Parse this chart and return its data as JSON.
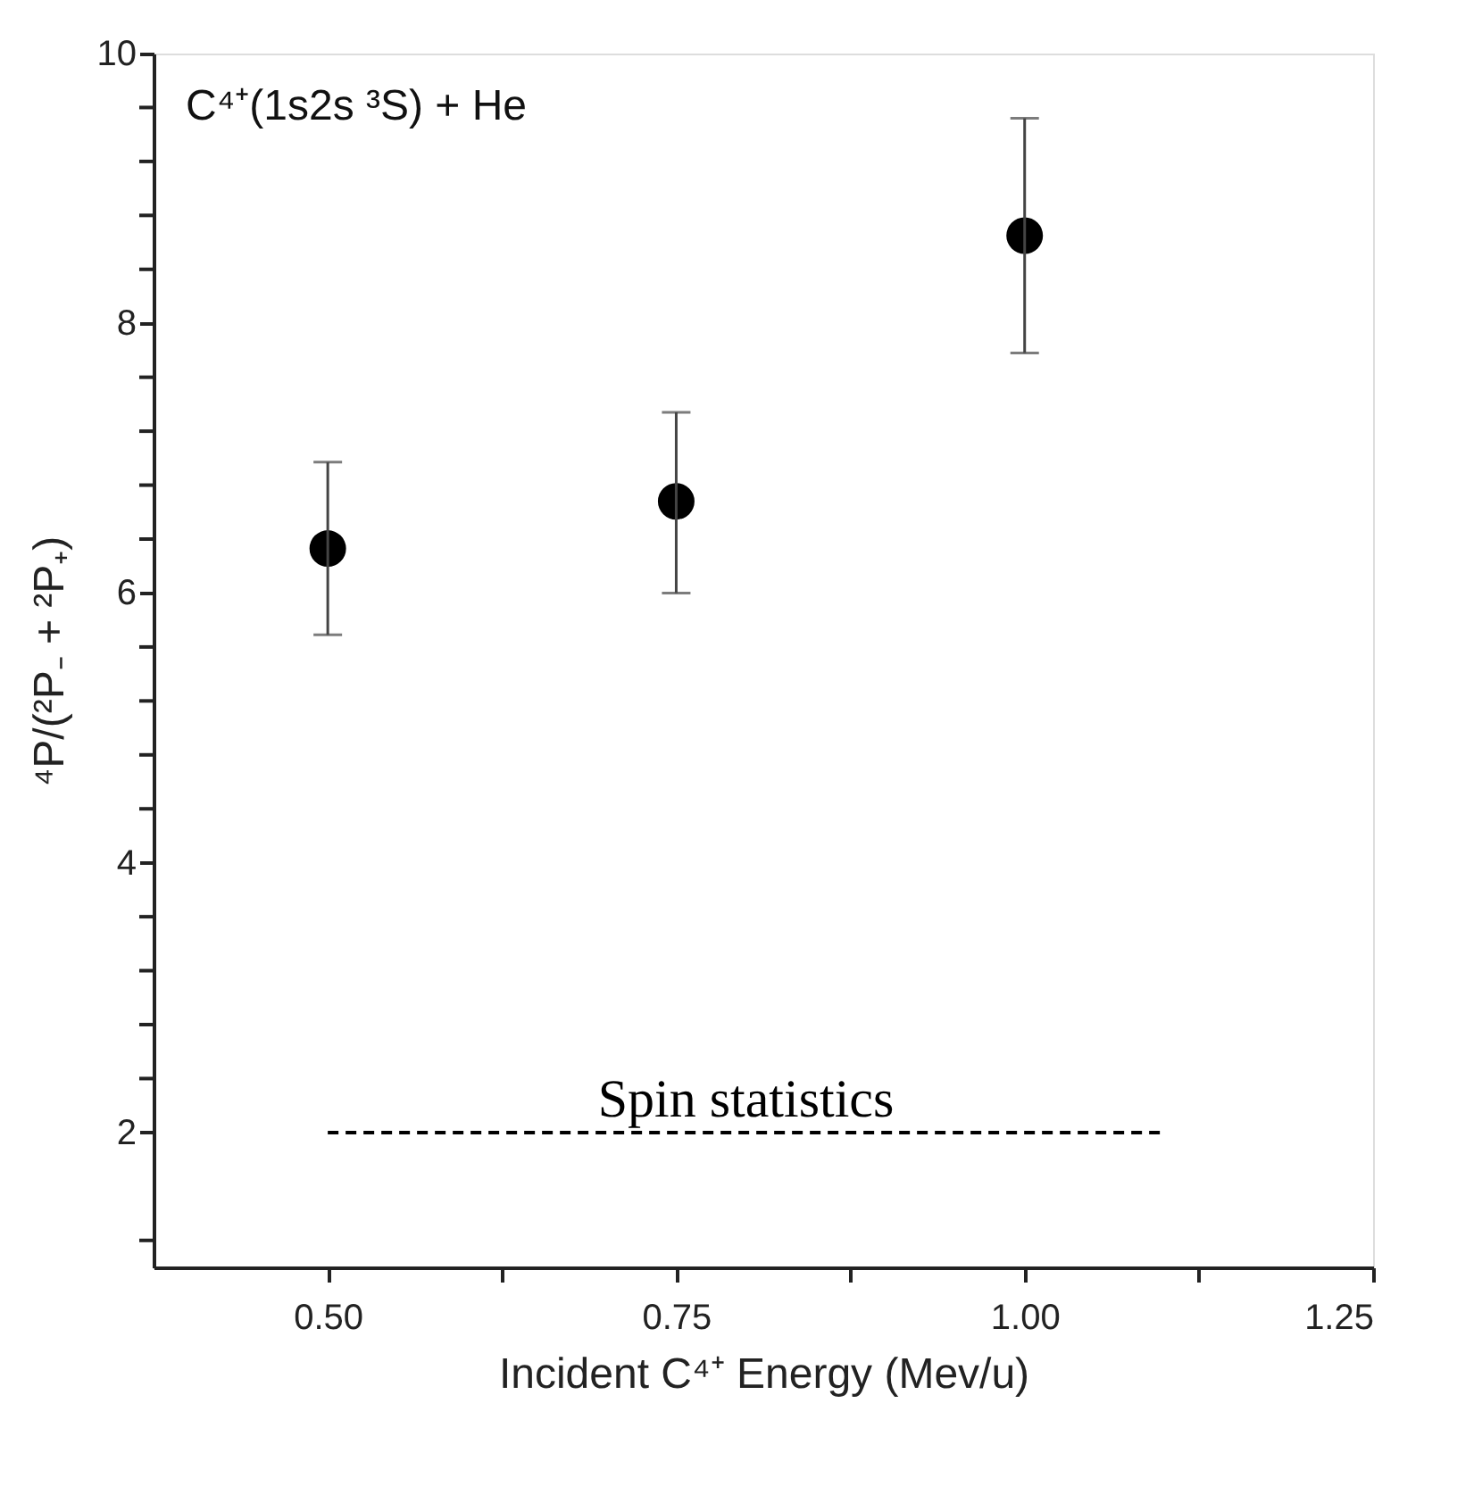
{
  "chart_data": {
    "type": "scatter",
    "xlabel": "Incident C⁴⁺ Energy (Mev/u)",
    "ylabel": "⁴P/(²P₋ + ²P₊)",
    "annotations": [
      "C⁴⁺(1s2s ³S) + He"
    ],
    "series": [
      {
        "color": "#000000",
        "marker": "circle",
        "x": [
          0.5,
          0.75,
          1.0
        ],
        "values": [
          6.33,
          6.68,
          8.65
        ],
        "errors": [
          [
            5.69,
            6.97
          ],
          [
            6.0,
            7.34
          ],
          [
            7.78,
            9.52
          ]
        ]
      },
      {
        "type": "line",
        "name": "Spin statistics",
        "color": "#000000",
        "line_style": "dashed",
        "x": [
          0.5,
          1.1
        ],
        "values": [
          2,
          2
        ]
      }
    ],
    "xlim": [
      0.375,
      1.25
    ],
    "xticks": [
      {
        "value": 0.5,
        "label": "0.50"
      },
      {
        "value": 0.625,
        "label": null
      },
      0.75,
      {
        "value": 0.875,
        "label": null
      },
      {
        "value": 1.0,
        "label": "1.00"
      },
      {
        "value": 1.125,
        "label": null
      },
      1.25
    ],
    "ylim": [
      1,
      10
    ],
    "yticks": [
      {
        "value": 1.2,
        "label": null
      },
      2,
      {
        "value": 2.4,
        "label": null
      },
      {
        "value": 2.8,
        "label": null
      },
      {
        "value": 3.2,
        "label": null
      },
      {
        "value": 3.6,
        "label": null
      },
      4,
      {
        "value": 4.4,
        "label": null
      },
      {
        "value": 4.8,
        "label": null
      },
      {
        "value": 5.2,
        "label": null
      },
      {
        "value": 5.6,
        "label": null
      },
      6,
      {
        "value": 6.4,
        "label": null
      },
      {
        "value": 6.8,
        "label": null
      },
      {
        "value": 7.2,
        "label": null
      },
      {
        "value": 7.6,
        "label": null
      },
      8,
      {
        "value": 8.4,
        "label": null
      },
      {
        "value": 8.8,
        "label": null
      },
      {
        "value": 9.2,
        "label": null
      },
      {
        "value": 9.6,
        "label": null
      },
      10
    ],
    "grid": false
  }
}
